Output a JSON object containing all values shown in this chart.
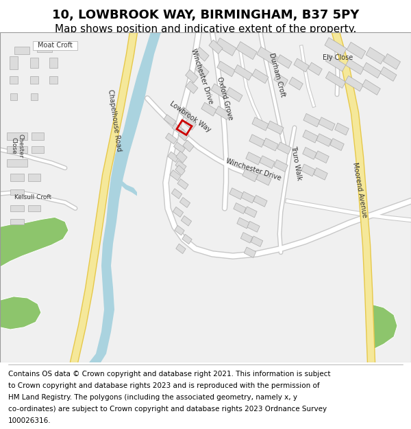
{
  "title": "10, LOWBROOK WAY, BIRMINGHAM, B37 5PY",
  "subtitle": "Map shows position and indicative extent of the property.",
  "footer_lines": [
    "Contains OS data © Crown copyright and database right 2021. This information is subject",
    "to Crown copyright and database rights 2023 and is reproduced with the permission of",
    "HM Land Registry. The polygons (including the associated geometry, namely x, y",
    "co-ordinates) are subject to Crown copyright and database rights 2023 Ordnance Survey",
    "100026316."
  ],
  "map_bg": "#f0f0f0",
  "water_color": "#aad3df",
  "green_color": "#8dc56c",
  "yellow_road_color": "#f5e89a",
  "yellow_road_edge": "#e6c84a",
  "red_outline_color": "#cc0000",
  "title_fontsize": 13,
  "subtitle_fontsize": 11,
  "footer_fontsize": 7.5
}
